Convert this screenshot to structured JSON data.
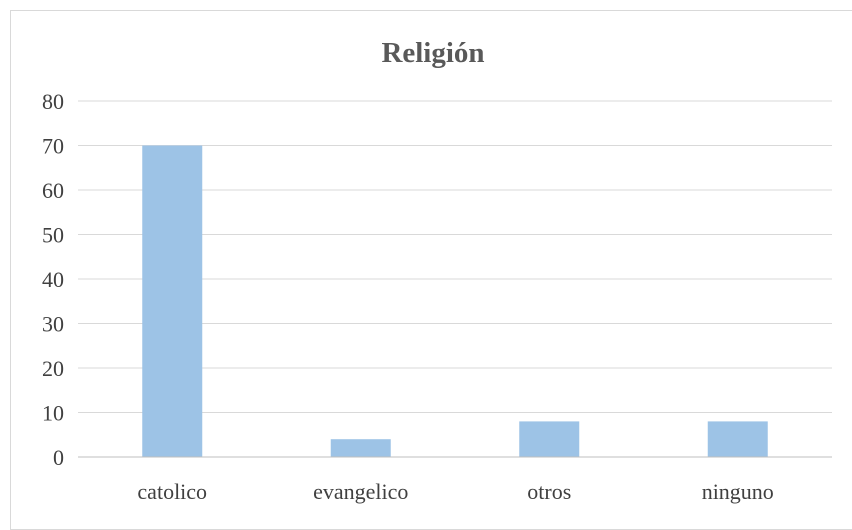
{
  "chart_data": {
    "type": "bar",
    "title": "Religión",
    "xlabel": "",
    "ylabel": "",
    "categories": [
      "catolico",
      "evangelico",
      "otros",
      "ninguno"
    ],
    "values": [
      70,
      4,
      8,
      8
    ],
    "ylim": [
      0,
      80
    ],
    "yticks": [
      "0",
      "10",
      "20",
      "30",
      "40",
      "50",
      "60",
      "70",
      "80"
    ],
    "grid": true,
    "legend": "none",
    "bar_color": "#9dc3e6"
  }
}
